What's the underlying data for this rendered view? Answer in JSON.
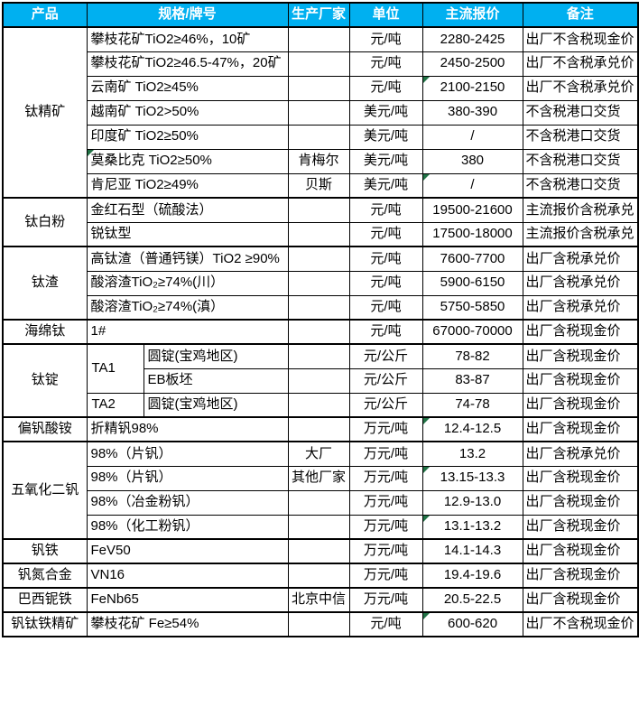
{
  "colors": {
    "header_bg": "#00B0F0",
    "header_text": "#FFFFFF",
    "border": "#000000",
    "error_flag_green": "#217346"
  },
  "table": {
    "columns": [
      "产品",
      "规格/牌号",
      "生产厂家",
      "单位",
      "主流报价",
      "备注"
    ],
    "groups": [
      {
        "product": "钛精矿",
        "rows": [
          {
            "spec": "攀枝花矿TiO2≥46%，10矿",
            "mfr": "",
            "unit": "元/吨",
            "price": "2280-2425",
            "note": "出厂不含税现金价"
          },
          {
            "spec": "攀枝花矿TiO2≥46.5-47%，20矿",
            "mfr": "",
            "unit": "元/吨",
            "price": "2450-2500",
            "note": "出厂不含税承兑价"
          },
          {
            "spec": "云南矿 TiO2≥45%",
            "mfr": "",
            "unit": "元/吨",
            "price": "2100-2150",
            "price_flag": true,
            "note": "出厂不含税承兑价"
          },
          {
            "spec": "越南矿 TiO2>50%",
            "mfr": "",
            "unit": "美元/吨",
            "price": "380-390",
            "note": "不含税港口交货"
          },
          {
            "spec": "印度矿 TiO2≥50%",
            "mfr": "",
            "unit": "美元/吨",
            "price": "/",
            "note": "不含税港口交货"
          },
          {
            "spec": "莫桑比克 TiO2≥50%",
            "spec_flag": true,
            "mfr": "肯梅尔",
            "unit": "美元/吨",
            "price": "380",
            "note": "不含税港口交货"
          },
          {
            "spec": "肯尼亚 TiO2≥49%",
            "mfr": "贝斯",
            "unit": "美元/吨",
            "price": "/",
            "price_flag": true,
            "note": "不含税港口交货"
          }
        ]
      },
      {
        "product": "钛白粉",
        "rows": [
          {
            "spec": "金红石型（硫酸法）",
            "mfr": "",
            "unit": "元/吨",
            "price": "19500-21600",
            "note": "主流报价含税承兑"
          },
          {
            "spec": "锐钛型",
            "mfr": "",
            "unit": "元/吨",
            "price": "17500-18000",
            "note": "主流报价含税承兑"
          }
        ]
      },
      {
        "product": "钛渣",
        "rows": [
          {
            "spec": "高钛渣（普通钙镁）TiO2 ≥90%",
            "mfr": "",
            "unit": "元/吨",
            "price": "7600-7700",
            "note": "出厂含税承兑价"
          },
          {
            "spec": "酸溶渣TiO₂≥74%(川）",
            "mfr": "",
            "unit": "元/吨",
            "price": "5900-6150",
            "note": "出厂含税承兑价"
          },
          {
            "spec": "酸溶渣TiO₂≥74%(滇）",
            "mfr": "",
            "unit": "元/吨",
            "price": "5750-5850",
            "note": "出厂含税承兑价"
          }
        ]
      },
      {
        "product": "海绵钛",
        "rows": [
          {
            "spec": "1#",
            "mfr": "",
            "unit": "元/吨",
            "price": "67000-70000",
            "note": "出厂含税现金价"
          }
        ]
      },
      {
        "product": "钛锭",
        "rows": [
          {
            "grade": "TA1",
            "grade_span": 2,
            "spec": "圆锭(宝鸡地区)",
            "mfr": "",
            "unit": "元/公斤",
            "price": "78-82",
            "note": "出厂含税现金价"
          },
          {
            "sub": true,
            "spec": "EB板坯",
            "mfr": "",
            "unit": "元/公斤",
            "price": "83-87",
            "note": "出厂含税现金价"
          },
          {
            "grade": "TA2",
            "grade_span": 1,
            "spec": "圆锭(宝鸡地区)",
            "mfr": "",
            "unit": "元/公斤",
            "price": "74-78",
            "note": "出厂含税现金价"
          }
        ]
      },
      {
        "product": "偏钒酸铵",
        "rows": [
          {
            "spec": "折精钒98%",
            "mfr": "",
            "unit": "万元/吨",
            "price": "12.4-12.5",
            "price_flag": true,
            "note": "出厂含税现金价"
          }
        ]
      },
      {
        "product": "五氧化二钒",
        "rows": [
          {
            "spec": "98%（片钒）",
            "mfr": "大厂",
            "unit": "万元/吨",
            "price": "13.2",
            "note": "出厂含税承兑价"
          },
          {
            "spec": "98%（片钒）",
            "mfr": "其他厂家",
            "unit": "万元/吨",
            "price": "13.15-13.3",
            "price_flag": true,
            "note": "出厂含税现金价"
          },
          {
            "spec": "98%（冶金粉钒）",
            "mfr": "",
            "unit": "万元/吨",
            "price": "12.9-13.0",
            "note": "出厂含税现金价"
          },
          {
            "spec": "98%（化工粉钒）",
            "mfr": "",
            "unit": "万元/吨",
            "price": "13.1-13.2",
            "price_flag": true,
            "note": "出厂含税现金价"
          }
        ]
      },
      {
        "product": "钒铁",
        "rows": [
          {
            "spec": "FeV50",
            "mfr": "",
            "unit": "万元/吨",
            "price": "14.1-14.3",
            "note": "出厂含税现金价"
          }
        ]
      },
      {
        "product": "钒氮合金",
        "rows": [
          {
            "spec": "VN16",
            "mfr": "",
            "unit": "万元/吨",
            "price": "19.4-19.6",
            "note": "出厂含税现金价"
          }
        ]
      },
      {
        "product": "巴西铌铁",
        "rows": [
          {
            "spec": "FeNb65",
            "mfr": "北京中信",
            "unit": "万元/吨",
            "price": "20.5-22.5",
            "note": "出厂含税现金价"
          }
        ]
      },
      {
        "product": "钒钛铁精矿",
        "rows": [
          {
            "spec": "攀枝花矿 Fe≥54%",
            "mfr": "",
            "unit": "元/吨",
            "price": "600-620",
            "price_flag": true,
            "note": "出厂不含税现金价"
          }
        ]
      }
    ]
  }
}
